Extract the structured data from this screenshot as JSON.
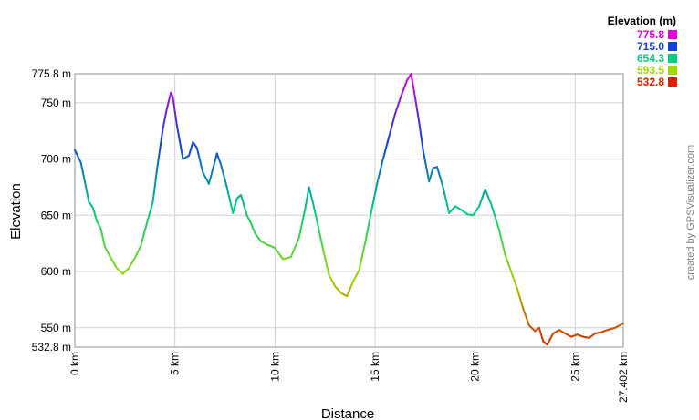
{
  "chart_data": {
    "type": "line",
    "xlabel": "Distance",
    "ylabel": "Elevation",
    "xlim": [
      0,
      27.402
    ],
    "ylim": [
      532.8,
      775.8
    ],
    "grid": true,
    "x_ticks": [
      {
        "value": 0,
        "label": "0 km"
      },
      {
        "value": 5,
        "label": "5 km"
      },
      {
        "value": 10,
        "label": "10 km"
      },
      {
        "value": 15,
        "label": "15 km"
      },
      {
        "value": 20,
        "label": "20 km"
      },
      {
        "value": 25,
        "label": "25 km"
      },
      {
        "value": 27.402,
        "label": "27.402 km"
      }
    ],
    "y_ticks": [
      {
        "value": 775.8,
        "label": "775.8 m"
      },
      {
        "value": 750,
        "label": "750 m"
      },
      {
        "value": 700,
        "label": "700 m"
      },
      {
        "value": 650,
        "label": "650 m"
      },
      {
        "value": 600,
        "label": "600 m"
      },
      {
        "value": 550,
        "label": "550 m"
      },
      {
        "value": 532.8,
        "label": "532.8 m"
      }
    ],
    "legend": {
      "title": "Elevation (m)",
      "placement": "top-right",
      "entries": [
        {
          "label": "775.8",
          "color": "#e000e0"
        },
        {
          "label": "715.0",
          "color": "#1040e0"
        },
        {
          "label": "654.3",
          "color": "#00d080"
        },
        {
          "label": "593.5",
          "color": "#a0d800"
        },
        {
          "label": "532.8",
          "color": "#e02000"
        }
      ]
    },
    "series": [
      {
        "color_scale": "elevation",
        "points": [
          [
            0,
            708
          ],
          [
            0.3,
            697
          ],
          [
            0.5,
            680
          ],
          [
            0.7,
            662
          ],
          [
            0.9,
            657
          ],
          [
            1.1,
            645
          ],
          [
            1.3,
            638
          ],
          [
            1.5,
            622
          ],
          [
            1.8,
            612
          ],
          [
            2.1,
            603
          ],
          [
            2.4,
            598
          ],
          [
            2.7,
            603
          ],
          [
            3.0,
            612
          ],
          [
            3.3,
            623
          ],
          [
            3.6,
            643
          ],
          [
            3.9,
            662
          ],
          [
            4.1,
            690
          ],
          [
            4.4,
            727
          ],
          [
            4.6,
            745
          ],
          [
            4.8,
            759
          ],
          [
            4.9,
            755
          ],
          [
            5.1,
            730
          ],
          [
            5.4,
            700
          ],
          [
            5.7,
            703
          ],
          [
            5.9,
            715
          ],
          [
            6.1,
            710
          ],
          [
            6.4,
            688
          ],
          [
            6.7,
            678
          ],
          [
            7.0,
            698
          ],
          [
            7.1,
            705
          ],
          [
            7.3,
            695
          ],
          [
            7.6,
            675
          ],
          [
            7.9,
            652
          ],
          [
            8.1,
            665
          ],
          [
            8.3,
            668
          ],
          [
            8.6,
            650
          ],
          [
            8.8,
            643
          ],
          [
            9.0,
            634
          ],
          [
            9.3,
            627
          ],
          [
            9.6,
            624
          ],
          [
            10.0,
            621
          ],
          [
            10.4,
            611
          ],
          [
            10.8,
            613
          ],
          [
            11.2,
            630
          ],
          [
            11.5,
            655
          ],
          [
            11.7,
            675
          ],
          [
            11.9,
            661
          ],
          [
            12.1,
            645
          ],
          [
            12.4,
            620
          ],
          [
            12.7,
            597
          ],
          [
            13.0,
            587
          ],
          [
            13.3,
            581
          ],
          [
            13.6,
            578
          ],
          [
            13.9,
            591
          ],
          [
            14.2,
            601
          ],
          [
            14.5,
            625
          ],
          [
            14.8,
            652
          ],
          [
            15.1,
            678
          ],
          [
            15.4,
            700
          ],
          [
            15.7,
            720
          ],
          [
            16.0,
            740
          ],
          [
            16.3,
            756
          ],
          [
            16.6,
            770
          ],
          [
            16.8,
            775.8
          ],
          [
            17.0,
            755
          ],
          [
            17.2,
            733
          ],
          [
            17.4,
            708
          ],
          [
            17.7,
            680
          ],
          [
            17.9,
            692
          ],
          [
            18.1,
            693
          ],
          [
            18.4,
            675
          ],
          [
            18.7,
            652
          ],
          [
            19.0,
            658
          ],
          [
            19.3,
            655
          ],
          [
            19.6,
            651
          ],
          [
            19.9,
            650
          ],
          [
            20.2,
            658
          ],
          [
            20.5,
            673
          ],
          [
            20.8,
            660
          ],
          [
            21.2,
            637
          ],
          [
            21.5,
            615
          ],
          [
            21.8,
            600
          ],
          [
            22.1,
            585
          ],
          [
            22.4,
            567
          ],
          [
            22.7,
            552
          ],
          [
            23.0,
            547
          ],
          [
            23.2,
            550
          ],
          [
            23.4,
            538
          ],
          [
            23.6,
            535
          ],
          [
            23.9,
            545
          ],
          [
            24.2,
            548
          ],
          [
            24.5,
            545
          ],
          [
            24.8,
            542
          ],
          [
            25.1,
            544
          ],
          [
            25.4,
            542
          ],
          [
            25.7,
            541
          ],
          [
            26.0,
            545
          ],
          [
            26.3,
            546
          ],
          [
            26.6,
            548
          ],
          [
            27.0,
            550
          ],
          [
            27.402,
            554
          ]
        ]
      }
    ]
  },
  "credit_text": "created by GPSVisualizer.com"
}
